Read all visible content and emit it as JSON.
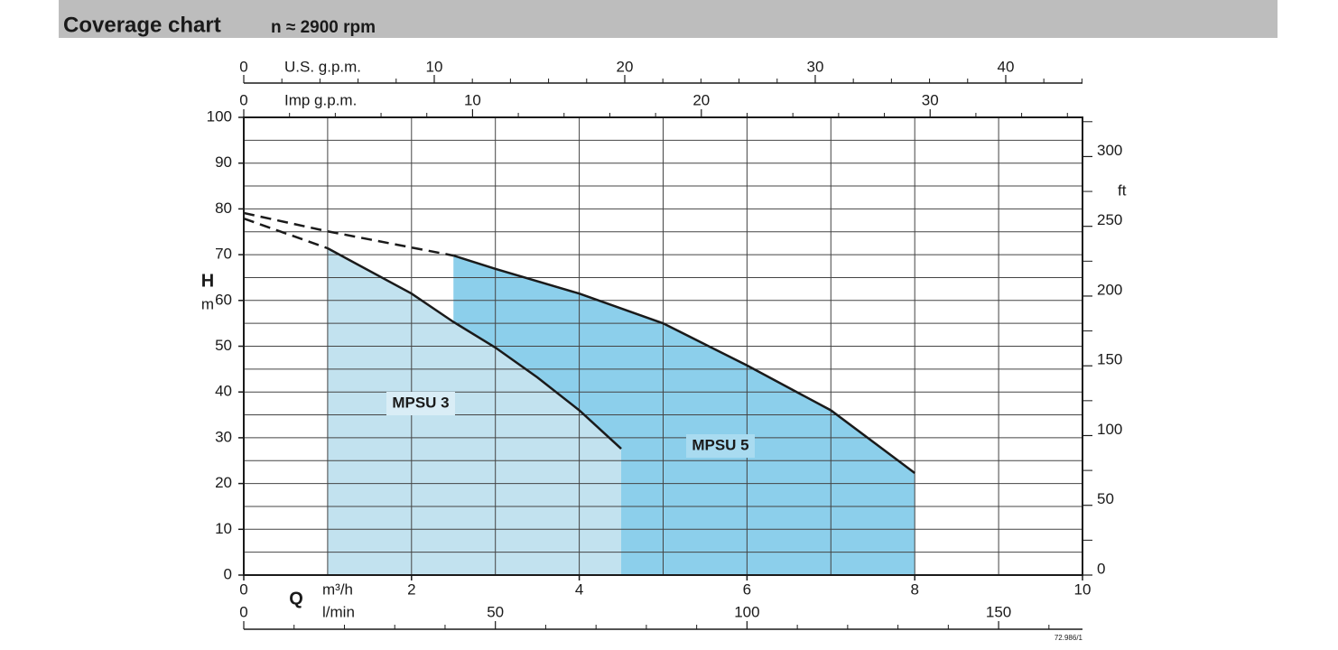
{
  "title": "Coverage chart",
  "subtitle": "n ≈ 2900 rpm",
  "chart_data": {
    "type": "area",
    "x_label": "Q",
    "x_unit": "m³/h",
    "y_label": "H",
    "y_unit": "m",
    "xlim": [
      0,
      10
    ],
    "xticks": [
      0,
      2,
      4,
      6,
      8,
      10
    ],
    "xgrid": [
      0,
      1,
      2,
      3,
      4,
      5,
      6,
      7,
      8,
      9,
      10
    ],
    "ylim": [
      0,
      100
    ],
    "yticks": [
      0,
      10,
      20,
      30,
      40,
      50,
      60,
      70,
      80,
      90,
      100
    ],
    "ygrid": [
      0,
      5,
      10,
      15,
      20,
      25,
      30,
      35,
      40,
      45,
      50,
      55,
      60,
      65,
      70,
      75,
      80,
      85,
      90,
      95,
      100
    ],
    "grid": true,
    "top_axes": [
      {
        "label": "U.S. g.p.m.",
        "lim": [
          0,
          44.03
        ],
        "ticks": [
          0,
          10,
          20,
          30,
          40
        ],
        "minor_ticks": [
          2,
          4,
          6,
          8,
          12,
          14,
          16,
          18,
          22,
          24,
          26,
          28,
          32,
          34,
          36,
          38,
          42,
          44
        ]
      },
      {
        "label": "Imp g.p.m.",
        "lim": [
          0,
          36.66
        ],
        "ticks": [
          0,
          10,
          20,
          30
        ],
        "minor_ticks": [
          2,
          4,
          6,
          8,
          12,
          14,
          16,
          18,
          22,
          24,
          26,
          28,
          32,
          34,
          36
        ]
      }
    ],
    "bottom_axis2": {
      "label": "l/min",
      "lim": [
        0,
        166.67
      ],
      "ticks": [
        0,
        50,
        100,
        150
      ],
      "minor_ticks": [
        10,
        20,
        30,
        40,
        60,
        70,
        80,
        90,
        110,
        120,
        130,
        140,
        160
      ]
    },
    "y2_label": "ft",
    "y2lim": [
      0,
      328.1
    ],
    "y2ticks": [
      0,
      50,
      100,
      150,
      200,
      250,
      300
    ],
    "y2_minor_ticks": [
      25,
      75,
      125,
      175,
      225,
      275,
      325
    ],
    "series": [
      {
        "name": "MPSU 3",
        "color": "#c2e2ef",
        "x": [
          1,
          2,
          2.5,
          3,
          3.5,
          4,
          4.5
        ],
        "values": [
          71.4,
          61.5,
          55.3,
          49.7,
          43.2,
          36,
          27.6
        ],
        "dashed_x": [
          0,
          1
        ],
        "dashed_values": [
          77.9,
          71.4
        ]
      },
      {
        "name": "MPSU 5",
        "color": "#8ccfeb",
        "x": [
          2.5,
          3,
          4,
          5,
          6,
          7,
          8
        ],
        "values": [
          69.8,
          66.9,
          61.5,
          55,
          45.8,
          36,
          22.3
        ],
        "dashed_x": [
          0,
          1,
          2.5
        ],
        "dashed_values": [
          79.1,
          75.1,
          69.8
        ]
      }
    ],
    "code": "72.986/1"
  }
}
